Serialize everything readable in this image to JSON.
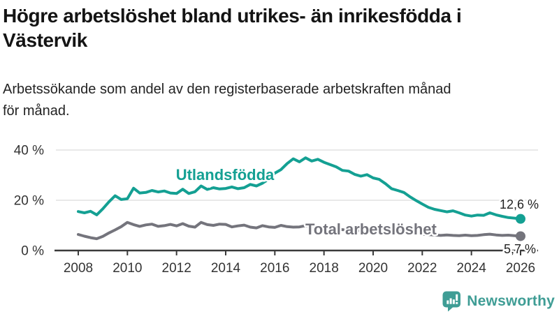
{
  "header": {
    "title_lines": [
      "Högre arbetslöshet bland utrikes- än inrikesfödda i",
      "Västervik"
    ],
    "subtitle_lines": [
      "Arbetssökande som andel av den registerbaserade arbetskraften månad",
      "för månad."
    ]
  },
  "chart_data": {
    "type": "line",
    "title": "Högre arbetslöshet bland utrikes- än inrikesfödda i Västervik",
    "subtitle": "Arbetssökande som andel av den registerbaserade arbetskraften månad för månad.",
    "grid": "horizontal",
    "ylim": [
      0,
      44
    ],
    "xlim": [
      2007.9,
      2026.2
    ],
    "y_axis": [
      {
        "label": "0 %",
        "value": 0
      },
      {
        "label": "20 %",
        "value": 20
      },
      {
        "label": "40 %",
        "value": 40
      }
    ],
    "x_axis": [
      {
        "label": "2008",
        "year": 2008
      },
      {
        "label": "2010",
        "year": 2010
      },
      {
        "label": "2012",
        "year": 2012
      },
      {
        "label": "2014",
        "year": 2014
      },
      {
        "label": "2016",
        "year": 2016
      },
      {
        "label": "2018",
        "year": 2018
      },
      {
        "label": "2020",
        "year": 2020
      },
      {
        "label": "2022",
        "year": 2022
      },
      {
        "label": "2024",
        "year": 2024
      },
      {
        "label": "2026",
        "year": 2026
      }
    ],
    "x": [
      2008,
      2008.25,
      2008.5,
      2008.75,
      2009,
      2009.25,
      2009.5,
      2009.75,
      2010,
      2010.25,
      2010.5,
      2010.75,
      2011,
      2011.25,
      2011.5,
      2011.75,
      2012,
      2012.25,
      2012.5,
      2012.75,
      2013,
      2013.25,
      2013.5,
      2013.75,
      2014,
      2014.25,
      2014.5,
      2014.75,
      2015,
      2015.25,
      2015.5,
      2015.75,
      2016,
      2016.25,
      2016.5,
      2016.75,
      2017,
      2017.25,
      2017.5,
      2017.75,
      2018,
      2018.25,
      2018.5,
      2018.75,
      2019,
      2019.25,
      2019.5,
      2019.75,
      2020,
      2020.25,
      2020.5,
      2020.75,
      2021,
      2021.25,
      2021.5,
      2021.75,
      2022,
      2022.25,
      2022.5,
      2022.75,
      2023,
      2023.25,
      2023.5,
      2023.75,
      2024,
      2024.25,
      2024.5,
      2024.75,
      2025,
      2025.25,
      2025.5,
      2025.75,
      2026
    ],
    "series": [
      {
        "name": "Utlandsfödda",
        "color": "#14a093",
        "end_label": "12,6 %",
        "end_value": 12.6,
        "values": [
          15.5,
          15,
          15.6,
          14.2,
          16.6,
          19.4,
          21.8,
          20.3,
          20.6,
          24.8,
          22.9,
          23.1,
          23.9,
          23.3,
          23.7,
          22.9,
          22.7,
          24.4,
          22.7,
          23.4,
          25.7,
          24.3,
          25,
          24.5,
          24.7,
          25.3,
          24.6,
          25,
          26.3,
          25.7,
          26.8,
          28.4,
          30.8,
          32.2,
          34.6,
          36.5,
          35.3,
          36.9,
          35.6,
          36.3,
          35.1,
          34.2,
          33.3,
          31.9,
          31.6,
          30.3,
          29.6,
          30.2,
          28.9,
          28.3,
          26.6,
          24.6,
          23.9,
          23.1,
          21.4,
          19.9,
          18.5,
          17.2,
          16.4,
          15.9,
          15.4,
          15.8,
          15,
          14.1,
          13.7,
          14.1,
          14,
          15,
          14.2,
          13.6,
          13.1,
          12.9,
          12.6
        ]
      },
      {
        "name": "Total arbetslöshet",
        "color": "#74747c",
        "end_label": "5,7 %",
        "end_value": 5.7,
        "values": [
          6.4,
          5.7,
          5.1,
          4.7,
          5.6,
          7,
          8.2,
          9.5,
          11.2,
          10.3,
          9.6,
          10.2,
          10.5,
          9.6,
          9.9,
          10.4,
          9.8,
          10.7,
          9.7,
          9.3,
          11.2,
          10.3,
          10,
          10.5,
          10.4,
          9.4,
          9.8,
          10.1,
          9.3,
          9,
          9.9,
          9.4,
          9.2,
          10,
          9.5,
          9.3,
          9.4,
          9.9,
          9.3,
          9,
          9.2,
          8.8,
          8.5,
          8.3,
          8.2,
          8,
          7.9,
          8.1,
          8.4,
          9,
          8.8,
          8.4,
          8,
          7.6,
          7.2,
          6.8,
          6.5,
          6.3,
          6.2,
          6,
          6.2,
          6,
          5.9,
          6.1,
          5.9,
          6,
          6.3,
          6.5,
          6.2,
          6,
          6.1,
          5.9,
          5.7
        ]
      }
    ],
    "annotations": {
      "series_label_1": "Utlandsfödda",
      "series_label_2": "Total arbetslöshet"
    },
    "legend_position": "inline-labels"
  },
  "footer": {
    "brand": "Newsworthy",
    "brand_color": "#3f9d95"
  }
}
